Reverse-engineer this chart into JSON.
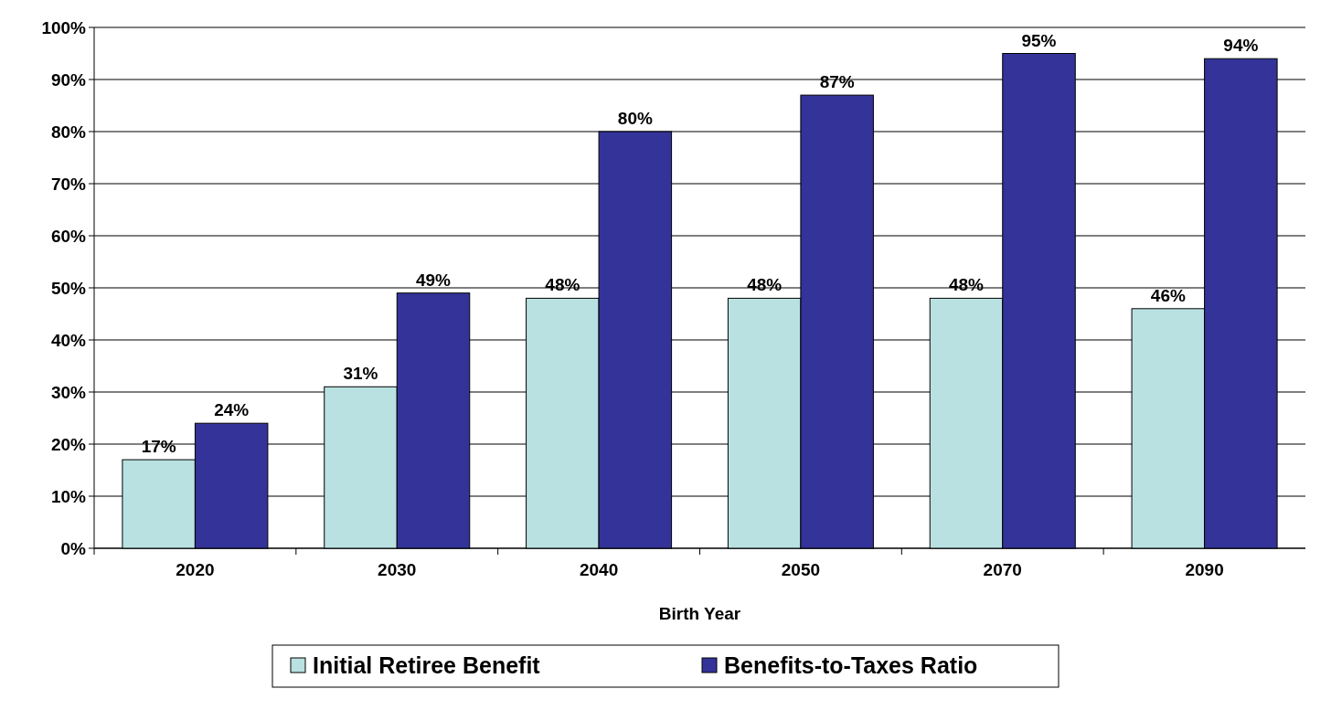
{
  "chart_data": {
    "type": "bar",
    "xlabel": "Birth Year",
    "categories": [
      "2020",
      "2030",
      "2040",
      "2050",
      "2070",
      "2090"
    ],
    "series": [
      {
        "name": "Initial Retiree Benefit",
        "color": "#b9e1e1",
        "values": [
          17,
          31,
          48,
          48,
          48,
          46
        ],
        "value_labels": [
          "17%",
          "31%",
          "48%",
          "48%",
          "48%",
          "46%"
        ]
      },
      {
        "name": "Benefits-to-Taxes Ratio",
        "color": "#333399",
        "values": [
          24,
          49,
          80,
          87,
          95,
          94
        ],
        "value_labels": [
          "24%",
          "49%",
          "80%",
          "87%",
          "95%",
          "94%"
        ]
      }
    ],
    "ylim": [
      0,
      100
    ],
    "yticks": [
      {
        "value": 0,
        "label": "0%"
      },
      {
        "value": 10,
        "label": "10%"
      },
      {
        "value": 20,
        "label": "20%"
      },
      {
        "value": 30,
        "label": "30%"
      },
      {
        "value": 40,
        "label": "40%"
      },
      {
        "value": 50,
        "label": "50%"
      },
      {
        "value": 60,
        "label": "60%"
      },
      {
        "value": 70,
        "label": "70%"
      },
      {
        "value": 80,
        "label": "80%"
      },
      {
        "value": 90,
        "label": "90%"
      },
      {
        "value": 100,
        "label": "100%"
      }
    ],
    "grid": "y",
    "legend": "bottom"
  }
}
